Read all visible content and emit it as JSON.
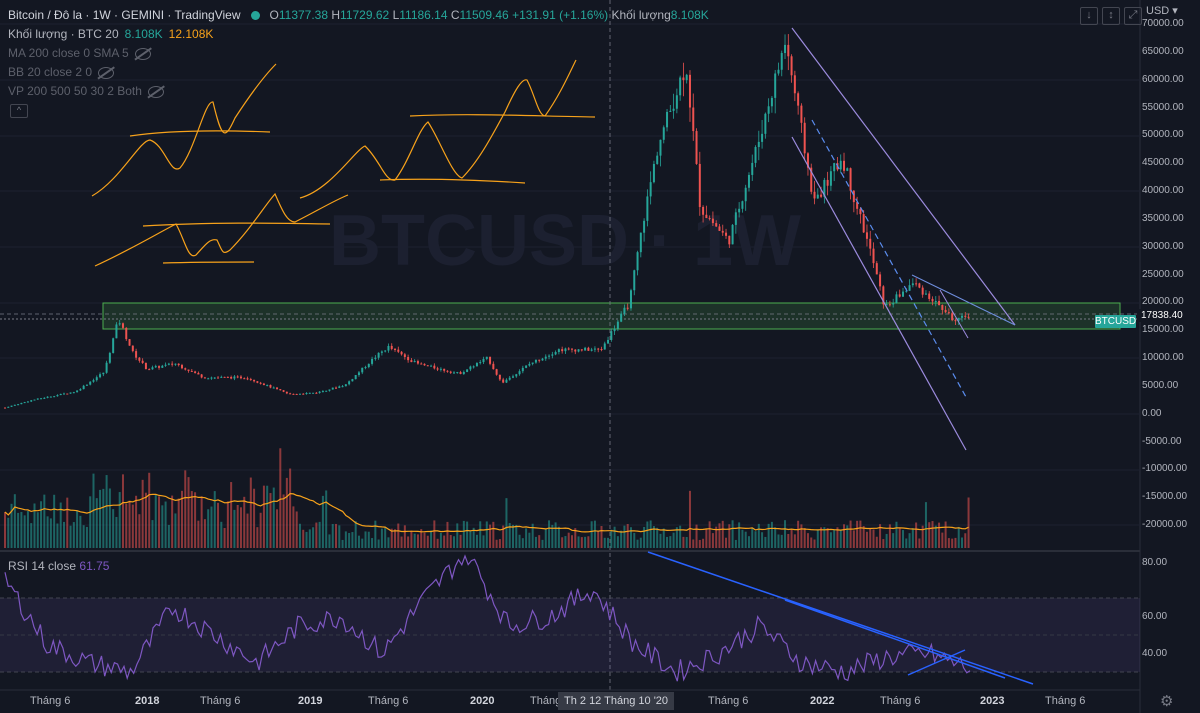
{
  "legend": {
    "title": "Bitcoin / Đô la · 1W · GEMINI · TradingView",
    "ohlc": [
      {
        "k": "O",
        "v": "11377.38"
      },
      {
        "k": "H",
        "v": "11729.62"
      },
      {
        "k": "L",
        "v": "11186.14"
      },
      {
        "k": "C",
        "v": "11509.46"
      }
    ],
    "change": "+131.91 (+1.16%)",
    "vol_label": "Khối lượng",
    "vol_value": "8.108K",
    "vol2_label": "Khối lượng · BTC 20",
    "vol2_a": "8.108K",
    "vol2_b": "12.108K",
    "ind1": "MA 200 close 0 SMA 5",
    "ind2": "BB 20 close 2 0",
    "ind3": "VP 200 500 50 30 2 Both"
  },
  "watermark": "BTCUSD · 1W",
  "currency": "USD",
  "symbol_tag": "BTCUSD",
  "last_price": "17838.40",
  "top_buttons": [
    "↓",
    "↕",
    "⤢"
  ],
  "collapse_button": "^",
  "price_axis": [
    "70000.00",
    "65000.00",
    "60000.00",
    "55000.00",
    "50000.00",
    "45000.00",
    "40000.00",
    "35000.00",
    "30000.00",
    "25000.00",
    "20000.00",
    "15000.00",
    "10000.00",
    "5000.00",
    "0.00",
    "-5000.00",
    "-10000.00",
    "-15000.00",
    "-20000.00"
  ],
  "rsi_axis": [
    "80.00",
    "60.00",
    "40.00"
  ],
  "rsi": {
    "label": "RSI 14 close",
    "value": "61.75"
  },
  "time_axis": [
    {
      "t": "Tháng 6",
      "bold": false
    },
    {
      "t": "2018",
      "bold": true
    },
    {
      "t": "Tháng 6",
      "bold": false
    },
    {
      "t": "2019",
      "bold": true
    },
    {
      "t": "Tháng 6",
      "bold": false
    },
    {
      "t": "2020",
      "bold": true
    },
    {
      "t": "Tháng",
      "bold": false
    },
    {
      "t": "Tháng 6",
      "bold": false
    },
    {
      "t": "2022",
      "bold": true
    },
    {
      "t": "Tháng 6",
      "bold": false
    },
    {
      "t": "2023",
      "bold": true
    },
    {
      "t": "Tháng 6",
      "bold": false
    }
  ],
  "crosshair_date": "Th 2 12 Tháng 10 '20",
  "colors": {
    "background": "#131722",
    "up": "#26a69a",
    "down": "#ef5350",
    "drawing": "#f7a21b",
    "channel": "#9c8bde",
    "trend": "#2962ff",
    "zone": "#4caf50",
    "rsi": "#7e57c2"
  },
  "chart_data": {
    "type": "candlestick",
    "title": "Bitcoin / Đô la · 1W · GEMINI",
    "ylim": [
      -22000,
      72000
    ],
    "price_path": [
      [
        "2017-04",
        1100
      ],
      [
        "2017-06",
        2500
      ],
      [
        "2017-09",
        4000
      ],
      [
        "2017-11",
        7500
      ],
      [
        "2017-12",
        17000
      ],
      [
        "2018-01",
        11000
      ],
      [
        "2018-02",
        8000
      ],
      [
        "2018-04",
        9000
      ],
      [
        "2018-06",
        6500
      ],
      [
        "2018-09",
        6500
      ],
      [
        "2018-12",
        3500
      ],
      [
        "2019-02",
        3800
      ],
      [
        "2019-04",
        5200
      ],
      [
        "2019-06",
        10000
      ],
      [
        "2019-07",
        12000
      ],
      [
        "2019-09",
        9000
      ],
      [
        "2019-12",
        7200
      ],
      [
        "2020-02",
        10000
      ],
      [
        "2020-03",
        5500
      ],
      [
        "2020-05",
        9000
      ],
      [
        "2020-07",
        11500
      ],
      [
        "2020-10",
        11509
      ],
      [
        "2020-12",
        20000
      ],
      [
        "2021-01",
        35000
      ],
      [
        "2021-02",
        48000
      ],
      [
        "2021-04",
        63000
      ],
      [
        "2021-05",
        37000
      ],
      [
        "2021-07",
        31000
      ],
      [
        "2021-09",
        48000
      ],
      [
        "2021-11",
        67000
      ],
      [
        "2022-01",
        38000
      ],
      [
        "2022-03",
        46000
      ],
      [
        "2022-05",
        29000
      ],
      [
        "2022-06",
        19000
      ],
      [
        "2022-08",
        23500
      ],
      [
        "2022-10",
        19000
      ],
      [
        "2022-11",
        16500
      ],
      [
        "2022-12",
        17838
      ]
    ],
    "support_zone": [
      15500,
      20000
    ],
    "rsi_series": [
      80,
      45,
      35,
      30,
      65,
      50,
      35,
      55,
      60,
      40,
      70,
      95,
      55,
      60,
      75,
      45,
      30,
      40,
      55,
      35,
      30,
      38,
      40,
      32
    ],
    "rsi_levels": [
      70,
      50,
      30
    ]
  }
}
